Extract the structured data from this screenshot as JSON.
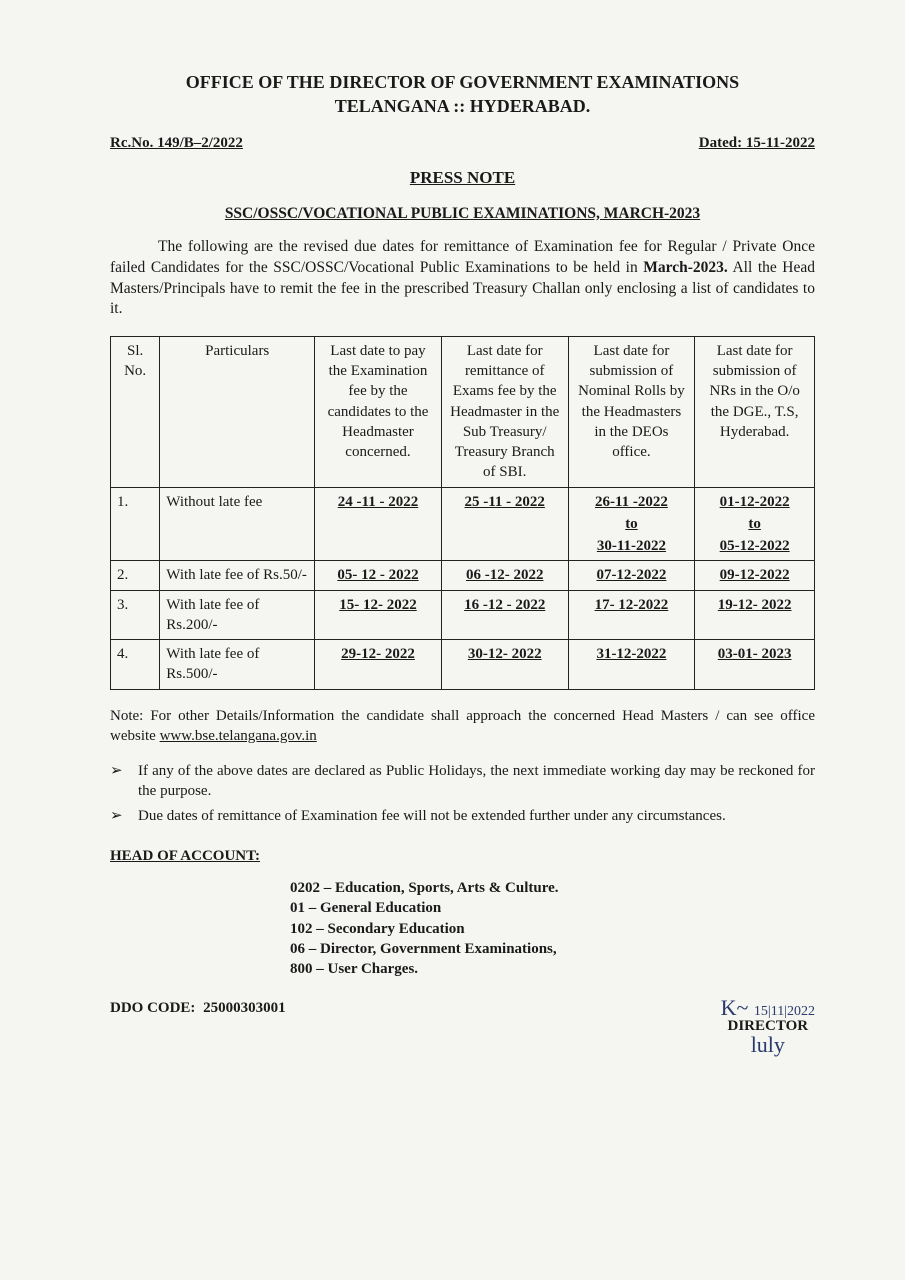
{
  "header": {
    "line1": "OFFICE OF THE DIRECTOR OF GOVERNMENT EXAMINATIONS",
    "line2": "TELANGANA :: HYDERABAD."
  },
  "meta": {
    "ref_no": "Rc.No. 149/B–2/2022",
    "dated": "Dated: 15-11-2022"
  },
  "press_note_label": "PRESS NOTE",
  "subject": "SSC/OSSC/VOCATIONAL PUBLIC EXAMINATIONS, MARCH-2023",
  "intro": {
    "pre": "The following are the revised due dates for remittance of Examination fee for Regular / Private Once failed Candidates for the SSC/OSSC/Vocational Public Examinations to be held in ",
    "bold": "March-2023.",
    "post": " All the Head Masters/Principals have to remit the fee in the prescribed Treasury Challan only enclosing a list of candidates to it."
  },
  "table": {
    "columns": [
      "Sl. No.",
      "Particulars",
      "Last date to pay the Examination fee by the candidates to the Headmaster concerned.",
      "Last date for remittance of Exams fee by the Headmaster in the Sub Treasury/ Treasury Branch of SBI.",
      "Last date for submission of Nominal Rolls by the Headmasters in the DEOs office.",
      "Last date for submission of NRs in the O/o the DGE., T.S, Hyderabad."
    ],
    "col_widths_pct": [
      7,
      22,
      18,
      18,
      18,
      17
    ],
    "rows": [
      {
        "sl": "1.",
        "particulars": "Without late fee",
        "c1": "24 -11 - 2022",
        "c2": "25 -11 - 2022",
        "c3_from": "26-11 -2022",
        "c3_to": "30-11-2022",
        "c4_from": "01-12-2022",
        "c4_to": "05-12-2022"
      },
      {
        "sl": "2.",
        "particulars": "With late fee of Rs.50/-",
        "c1": "05- 12 - 2022",
        "c2": "06 -12- 2022",
        "c3": "07-12-2022",
        "c4": "09-12-2022"
      },
      {
        "sl": "3.",
        "particulars": "With late fee of Rs.200/-",
        "c1": "15- 12- 2022",
        "c2": "16 -12 - 2022",
        "c3": "17- 12-2022",
        "c4": "19-12- 2022"
      },
      {
        "sl": "4.",
        "particulars": "With late fee of Rs.500/-",
        "c1": "29-12- 2022",
        "c2": "30-12- 2022",
        "c3": "31-12-2022",
        "c4": "03-01- 2023"
      }
    ],
    "to_label": "to"
  },
  "note": {
    "prefix": "Note: ",
    "text_pre": "For other Details/Information the candidate shall approach the concerned Head Masters / can see office website ",
    "website": "www.bse.telangana.gov.in"
  },
  "bullets": [
    "If any of the above dates are declared as Public Holidays, the next immediate working day may be reckoned for the purpose.",
    "Due dates of remittance of Examination fee will not be extended further under any circumstances."
  ],
  "bullet_mark": "➢",
  "head_of_account_label": "HEAD OF ACCOUNT:",
  "account_lines": [
    "0202 – Education, Sports, Arts & Culture.",
    "   01 – General Education",
    " 102 – Secondary Education",
    "   06 – Director, Government Examinations,",
    " 800 – User Charges."
  ],
  "ddo": {
    "label": "DDO CODE:",
    "value": "25000303001"
  },
  "signature": {
    "scribble1": "K~",
    "sig_date": "15|11|2022",
    "title": "DIRECTOR",
    "scribble2": "luly"
  },
  "colors": {
    "text": "#1a1a1a",
    "ink_blue": "#2a3a6a",
    "background": "#f5f5f2",
    "border": "#222222"
  },
  "fontsizes_pt": {
    "header": 18,
    "body": 15.5,
    "table": 15,
    "press_note": 17
  }
}
